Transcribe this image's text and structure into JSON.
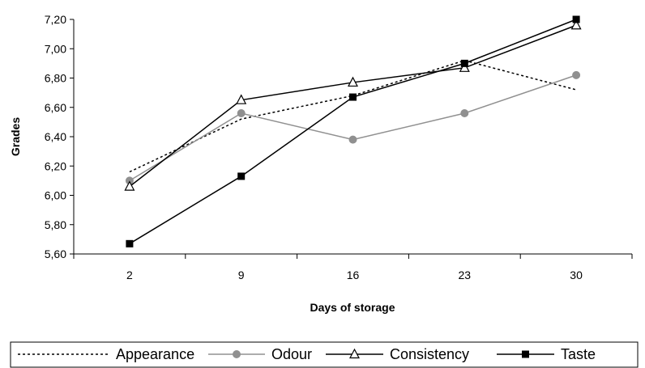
{
  "chart_data": {
    "type": "line",
    "xlabel": "Days of storage",
    "ylabel": "Grades",
    "x": [
      2,
      9,
      16,
      23,
      30
    ],
    "x_tick_labels": [
      "2",
      "9",
      "16",
      "23",
      "30"
    ],
    "ylim": [
      5.6,
      7.2
    ],
    "y_ticks": [
      5.6,
      5.8,
      6.0,
      6.2,
      6.4,
      6.6,
      6.8,
      7.0,
      7.2
    ],
    "y_tick_labels": [
      "5,60",
      "5,80",
      "6,00",
      "6,20",
      "6,40",
      "6,60",
      "6,80",
      "7,00",
      "7,20"
    ],
    "grid": false,
    "legend_position": "bottom",
    "series": [
      {
        "name": "Appearance",
        "values": [
          6.16,
          6.52,
          6.68,
          6.92,
          6.72
        ],
        "color": "#000000",
        "marker": "none",
        "dash": "dotted"
      },
      {
        "name": "Odour",
        "values": [
          6.1,
          6.56,
          6.38,
          6.56,
          6.82
        ],
        "color": "#909090",
        "marker": "circle",
        "dash": "solid"
      },
      {
        "name": "Consistency",
        "values": [
          6.06,
          6.65,
          6.77,
          6.87,
          7.16
        ],
        "color": "#000000",
        "marker": "triangle",
        "dash": "solid"
      },
      {
        "name": "Taste",
        "values": [
          5.67,
          6.13,
          6.67,
          6.9,
          7.2
        ],
        "color": "#000000",
        "marker": "square",
        "dash": "solid"
      }
    ]
  }
}
